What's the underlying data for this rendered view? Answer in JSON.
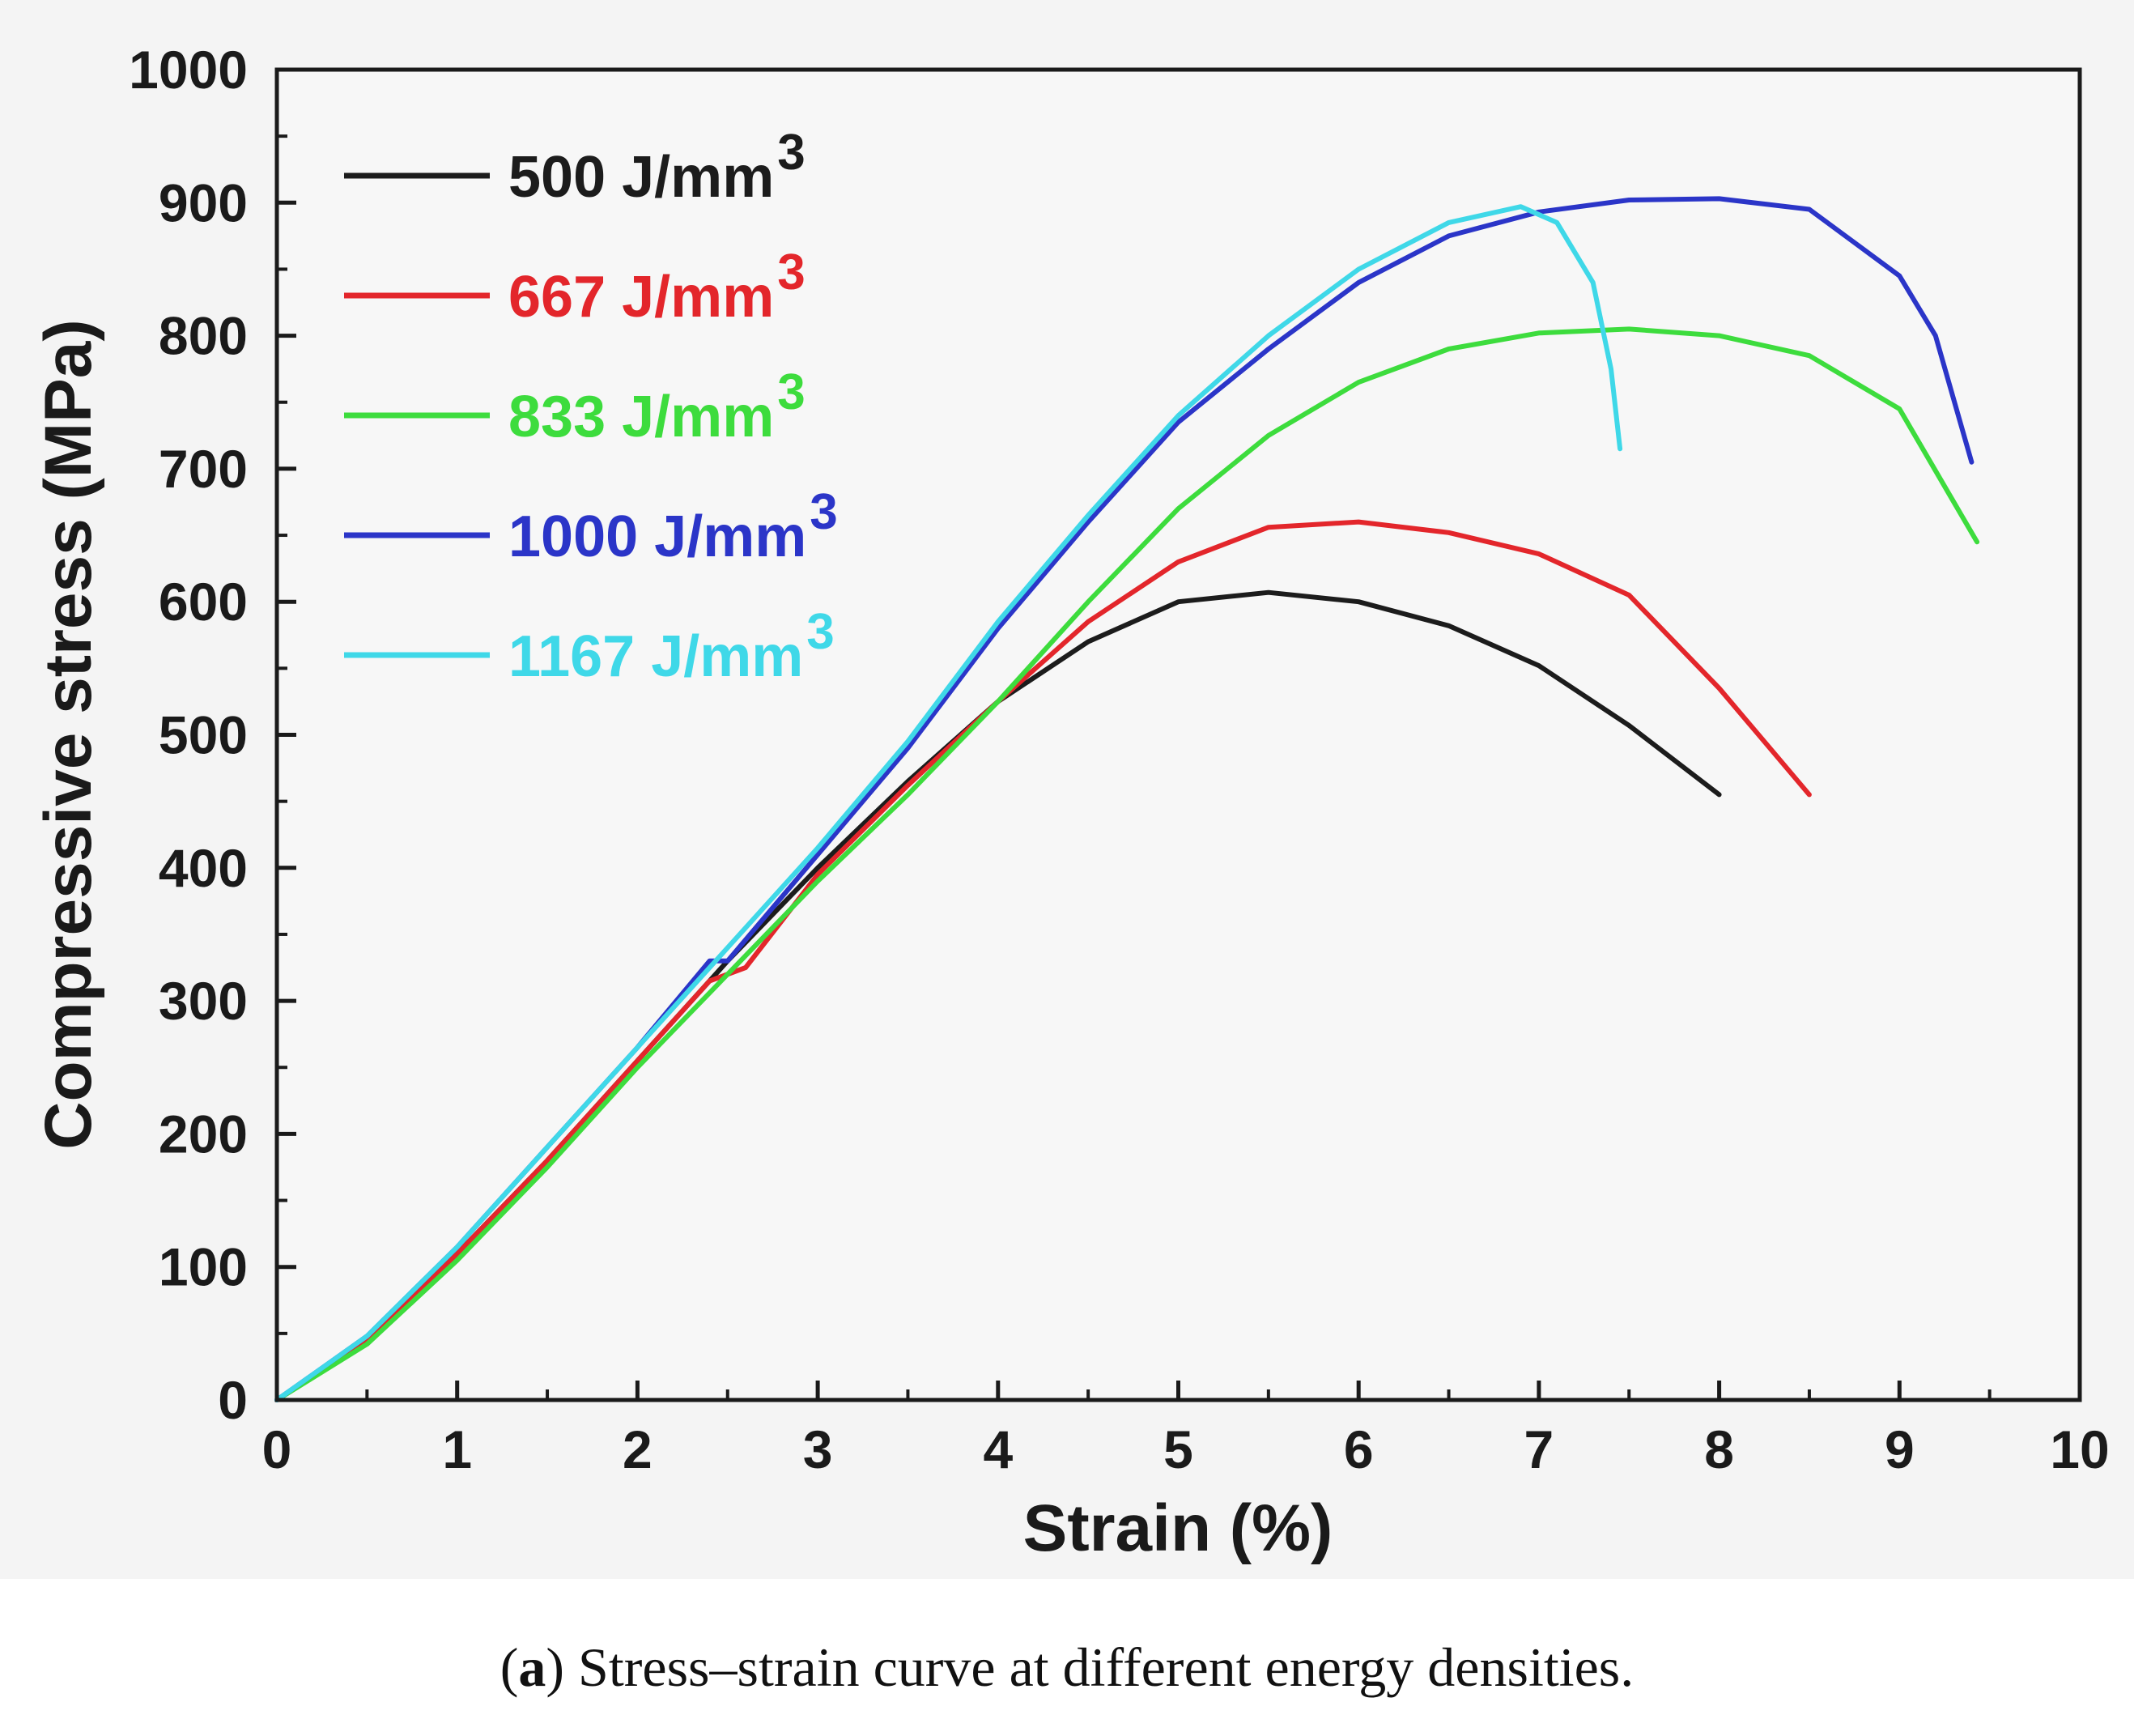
{
  "chart_data": {
    "type": "line",
    "title": "",
    "xlabel": "Strain (%)",
    "ylabel": "Compressive stress (MPa)",
    "xlim": [
      0,
      10
    ],
    "ylim": [
      0,
      1000
    ],
    "xticks": [
      0,
      1,
      2,
      3,
      4,
      5,
      6,
      7,
      8,
      9,
      10
    ],
    "yticks": [
      0,
      100,
      200,
      300,
      400,
      500,
      600,
      700,
      800,
      900,
      1000
    ],
    "legend_position": "top-left",
    "series": [
      {
        "name": "500 J/mm",
        "sup": "3",
        "color": "#1c1c1c",
        "points": [
          [
            0,
            0
          ],
          [
            0.5,
            45
          ],
          [
            1,
            110
          ],
          [
            1.5,
            180
          ],
          [
            2,
            255
          ],
          [
            2.5,
            330
          ],
          [
            3,
            400
          ],
          [
            3.5,
            465
          ],
          [
            4,
            525
          ],
          [
            4.5,
            570
          ],
          [
            5,
            600
          ],
          [
            5.5,
            607
          ],
          [
            6,
            600
          ],
          [
            6.5,
            582
          ],
          [
            7,
            552
          ],
          [
            7.5,
            507
          ],
          [
            8,
            455
          ]
        ]
      },
      {
        "name": "667 J/mm",
        "sup": "3",
        "color": "#e3262b",
        "points": [
          [
            0,
            0
          ],
          [
            0.5,
            45
          ],
          [
            1,
            110
          ],
          [
            1.5,
            180
          ],
          [
            2,
            255
          ],
          [
            2.4,
            315
          ],
          [
            2.6,
            325
          ],
          [
            3,
            395
          ],
          [
            3.5,
            462
          ],
          [
            4,
            525
          ],
          [
            4.5,
            585
          ],
          [
            5,
            630
          ],
          [
            5.5,
            656
          ],
          [
            6,
            660
          ],
          [
            6.5,
            652
          ],
          [
            7,
            636
          ],
          [
            7.5,
            605
          ],
          [
            8,
            535
          ],
          [
            8.5,
            455
          ]
        ]
      },
      {
        "name": "833 J/mm",
        "sup": "3",
        "color": "#3ddc3d",
        "points": [
          [
            0,
            0
          ],
          [
            0.5,
            42
          ],
          [
            1,
            105
          ],
          [
            1.5,
            175
          ],
          [
            2,
            250
          ],
          [
            2.5,
            320
          ],
          [
            3,
            390
          ],
          [
            3.5,
            455
          ],
          [
            4,
            525
          ],
          [
            4.5,
            600
          ],
          [
            5,
            670
          ],
          [
            5.5,
            725
          ],
          [
            6,
            765
          ],
          [
            6.5,
            790
          ],
          [
            7,
            802
          ],
          [
            7.5,
            805
          ],
          [
            8,
            800
          ],
          [
            8.5,
            785
          ],
          [
            9,
            745
          ],
          [
            9.43,
            645
          ]
        ]
      },
      {
        "name": "1000 J/mm",
        "sup": "3",
        "color": "#2b35c8",
        "points": [
          [
            0,
            0
          ],
          [
            0.5,
            48
          ],
          [
            1,
            115
          ],
          [
            1.5,
            190
          ],
          [
            2,
            265
          ],
          [
            2.4,
            330
          ],
          [
            2.5,
            330
          ],
          [
            3,
            410
          ],
          [
            3.5,
            490
          ],
          [
            4,
            580
          ],
          [
            4.5,
            660
          ],
          [
            5,
            735
          ],
          [
            5.5,
            790
          ],
          [
            6,
            840
          ],
          [
            6.5,
            875
          ],
          [
            7,
            893
          ],
          [
            7.5,
            902
          ],
          [
            8,
            903
          ],
          [
            8.5,
            895
          ],
          [
            9,
            845
          ],
          [
            9.2,
            800
          ],
          [
            9.4,
            705
          ]
        ]
      },
      {
        "name": "1167 J/mm",
        "sup": "3",
        "color": "#3fd8e8",
        "points": [
          [
            0,
            0
          ],
          [
            0.5,
            48
          ],
          [
            1,
            115
          ],
          [
            1.5,
            190
          ],
          [
            2,
            265
          ],
          [
            2.5,
            340
          ],
          [
            3,
            415
          ],
          [
            3.5,
            495
          ],
          [
            4,
            585
          ],
          [
            4.5,
            665
          ],
          [
            5,
            740
          ],
          [
            5.5,
            800
          ],
          [
            6,
            850
          ],
          [
            6.5,
            885
          ],
          [
            6.9,
            897
          ],
          [
            7.1,
            885
          ],
          [
            7.3,
            840
          ],
          [
            7.4,
            775
          ],
          [
            7.45,
            715
          ]
        ]
      }
    ]
  },
  "caption": {
    "label": "a",
    "text": " Stress–strain curve at different energy densities."
  }
}
